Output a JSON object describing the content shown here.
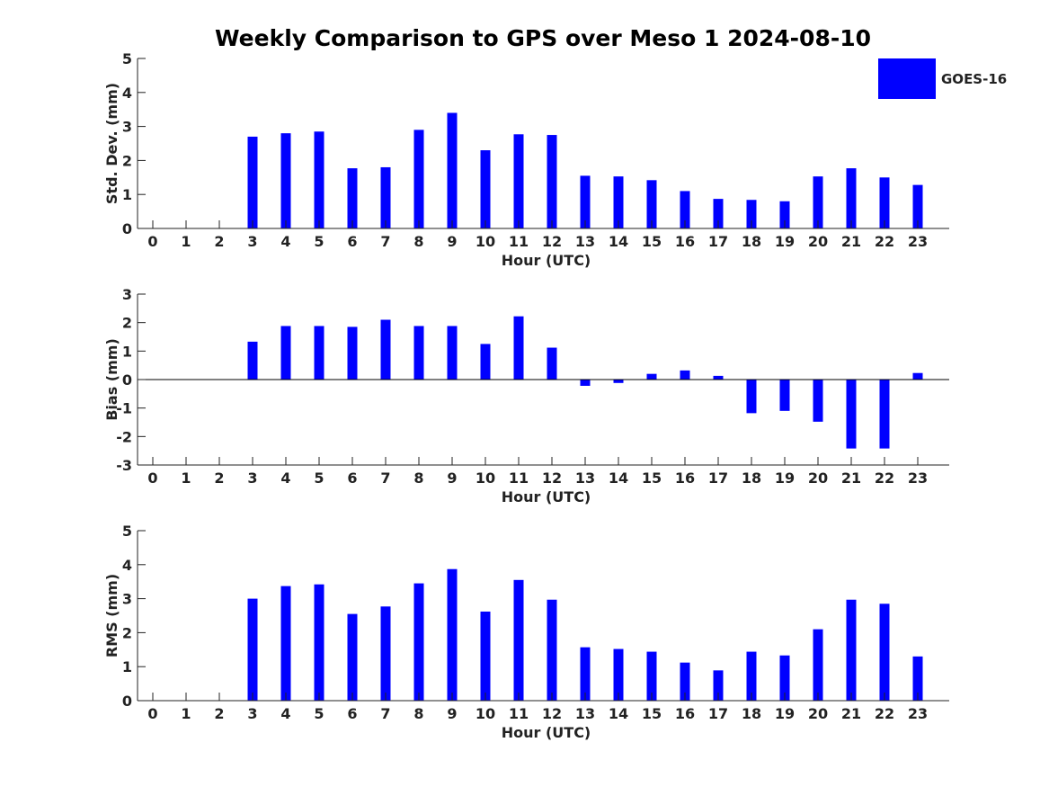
{
  "title": "Weekly Comparison to GPS over Meso 1 2024-08-10",
  "chart_data": [
    {
      "type": "bar",
      "id": "std",
      "title": "",
      "xlabel": "Hour (UTC)",
      "ylabel": "Std. Dev. (mm)",
      "categories": [
        "0",
        "1",
        "2",
        "3",
        "4",
        "5",
        "6",
        "7",
        "8",
        "9",
        "10",
        "11",
        "12",
        "13",
        "14",
        "15",
        "16",
        "17",
        "18",
        "19",
        "20",
        "21",
        "22",
        "23"
      ],
      "series": [
        {
          "name": "GOES-16",
          "color": "#0000ff",
          "values": [
            null,
            null,
            null,
            2.7,
            2.8,
            2.85,
            1.77,
            1.8,
            2.9,
            3.4,
            2.3,
            2.77,
            2.75,
            1.55,
            1.53,
            1.42,
            1.1,
            0.87,
            0.84,
            0.8,
            1.53,
            1.77,
            1.5,
            1.28
          ]
        }
      ],
      "ylim": [
        0,
        5
      ],
      "yticks": [
        0,
        1,
        2,
        3,
        4,
        5
      ],
      "legend": {
        "position": "top-right",
        "label": "GOES-16"
      }
    },
    {
      "type": "bar",
      "id": "bias",
      "title": "",
      "xlabel": "Hour (UTC)",
      "ylabel": "Bias (mm)",
      "categories": [
        "0",
        "1",
        "2",
        "3",
        "4",
        "5",
        "6",
        "7",
        "8",
        "9",
        "10",
        "11",
        "12",
        "13",
        "14",
        "15",
        "16",
        "17",
        "18",
        "19",
        "20",
        "21",
        "22",
        "23"
      ],
      "series": [
        {
          "name": "GOES-16",
          "color": "#0000ff",
          "values": [
            null,
            null,
            null,
            1.33,
            1.88,
            1.88,
            1.85,
            2.1,
            1.88,
            1.88,
            1.25,
            2.22,
            1.12,
            -0.22,
            -0.12,
            0.2,
            0.32,
            0.13,
            -1.18,
            -1.1,
            -1.48,
            -2.42,
            -2.42,
            0.23
          ]
        }
      ],
      "ylim": [
        -3,
        3
      ],
      "yticks": [
        -3,
        -2,
        -1,
        0,
        1,
        2,
        3
      ]
    },
    {
      "type": "bar",
      "id": "rms",
      "title": "",
      "xlabel": "Hour (UTC)",
      "ylabel": "RMS (mm)",
      "categories": [
        "0",
        "1",
        "2",
        "3",
        "4",
        "5",
        "6",
        "7",
        "8",
        "9",
        "10",
        "11",
        "12",
        "13",
        "14",
        "15",
        "16",
        "17",
        "18",
        "19",
        "20",
        "21",
        "22",
        "23"
      ],
      "series": [
        {
          "name": "GOES-16",
          "color": "#0000ff",
          "values": [
            null,
            null,
            null,
            3.0,
            3.37,
            3.42,
            2.55,
            2.77,
            3.45,
            3.87,
            2.62,
            3.55,
            2.97,
            1.57,
            1.52,
            1.44,
            1.12,
            0.89,
            1.44,
            1.33,
            2.1,
            2.97,
            2.85,
            1.3
          ]
        }
      ],
      "ylim": [
        0,
        5
      ],
      "yticks": [
        0,
        1,
        2,
        3,
        4,
        5
      ]
    }
  ]
}
